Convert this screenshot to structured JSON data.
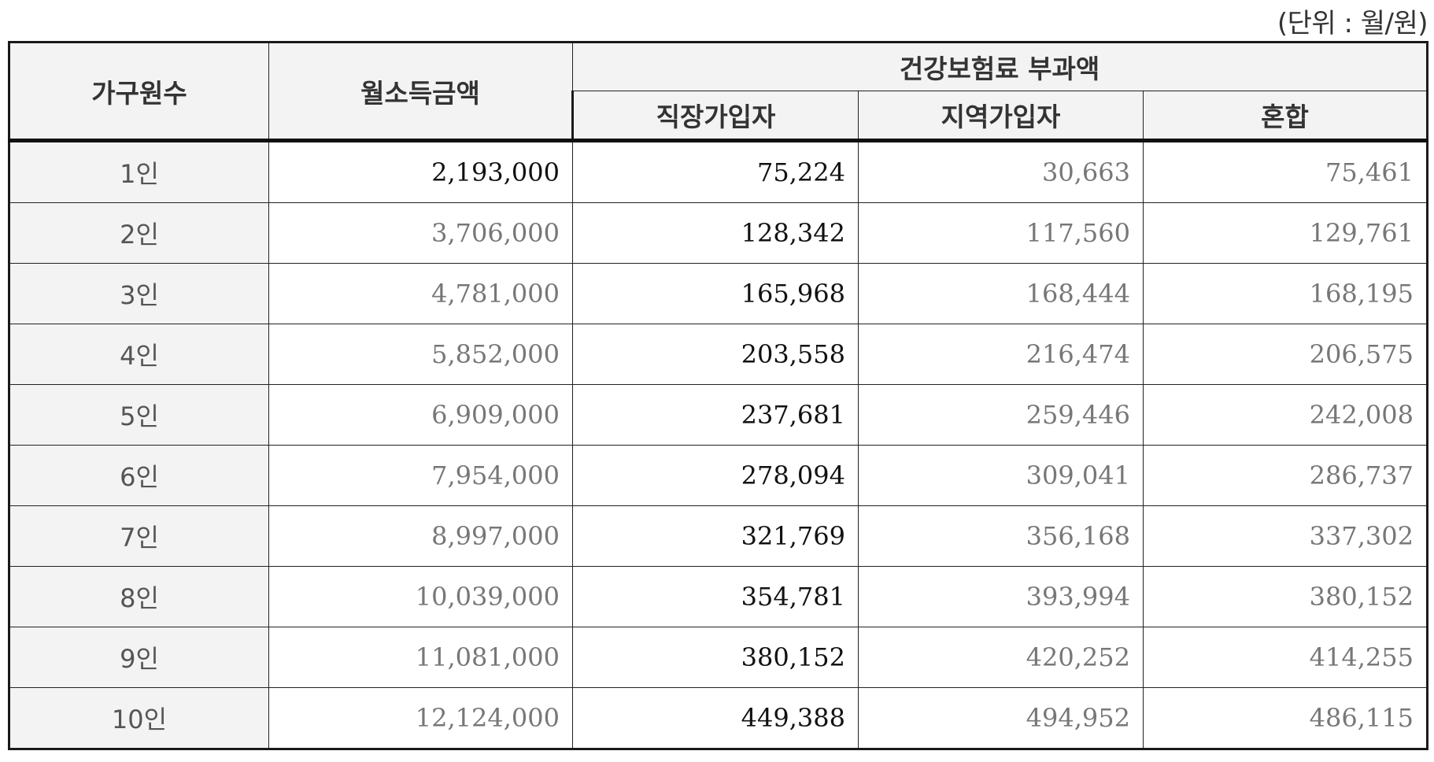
{
  "unit_label": "(단위 : 월/원)",
  "headers": {
    "household": "가구원수",
    "income": "월소득금액",
    "premium_group": "건강보험료 부과액",
    "employee": "직장가입자",
    "regional": "지역가입자",
    "mixed": "혼합"
  },
  "rows": [
    {
      "household": "1인",
      "income": "2,193,000",
      "employee": "75,224",
      "regional": "30,663",
      "mixed": "75,461"
    },
    {
      "household": "2인",
      "income": "3,706,000",
      "employee": "128,342",
      "regional": "117,560",
      "mixed": "129,761"
    },
    {
      "household": "3인",
      "income": "4,781,000",
      "employee": "165,968",
      "regional": "168,444",
      "mixed": "168,195"
    },
    {
      "household": "4인",
      "income": "5,852,000",
      "employee": "203,558",
      "regional": "216,474",
      "mixed": "206,575"
    },
    {
      "household": "5인",
      "income": "6,909,000",
      "employee": "237,681",
      "regional": "259,446",
      "mixed": "242,008"
    },
    {
      "household": "6인",
      "income": "7,954,000",
      "employee": "278,094",
      "regional": "309,041",
      "mixed": "286,737"
    },
    {
      "household": "7인",
      "income": "8,997,000",
      "employee": "321,769",
      "regional": "356,168",
      "mixed": "337,302"
    },
    {
      "household": "8인",
      "income": "10,039,000",
      "employee": "354,781",
      "regional": "393,994",
      "mixed": "380,152"
    },
    {
      "household": "9인",
      "income": "11,081,000",
      "employee": "380,152",
      "regional": "420,252",
      "mixed": "414,255"
    },
    {
      "household": "10인",
      "income": "12,124,000",
      "employee": "449,388",
      "regional": "494,952",
      "mixed": "486,115"
    }
  ]
}
